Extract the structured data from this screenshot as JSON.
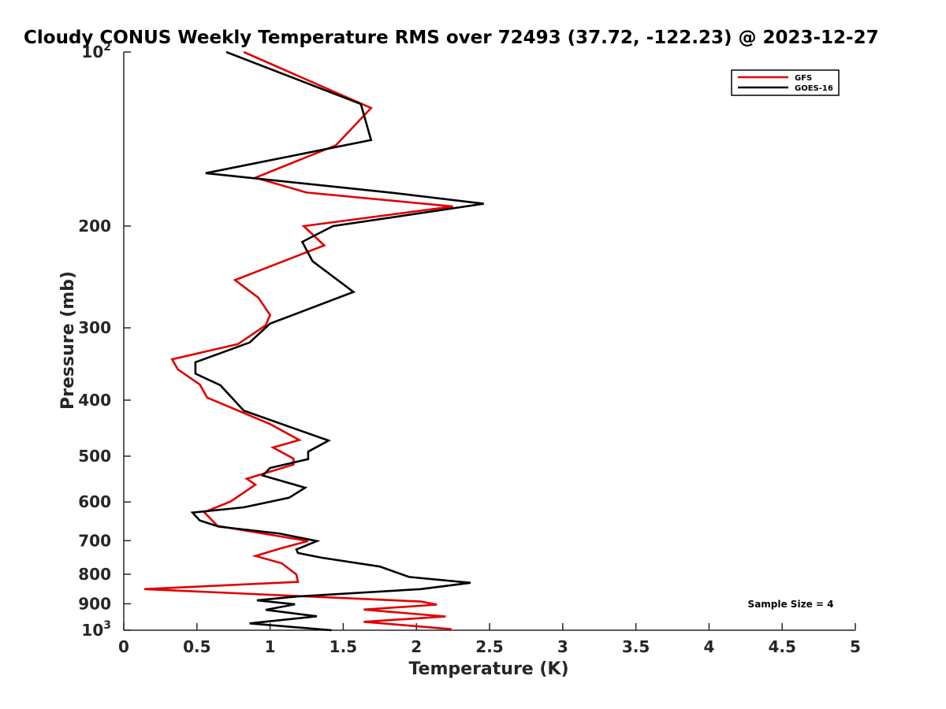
{
  "chart_data": {
    "type": "line",
    "title": "Cloudy CONUS Weekly Temperature RMS over 72493 (37.72, -122.23) @ 2023-12-27",
    "xlabel": "Temperature (K)",
    "ylabel": "Pressure (mb)",
    "xlim": [
      0,
      5
    ],
    "ylim": [
      100,
      1000
    ],
    "yscale": "log",
    "y_reversed": true,
    "x_ticks": [
      "0",
      "0.5",
      "1",
      "1.5",
      "2",
      "2.5",
      "3",
      "3.5",
      "4",
      "4.5",
      "5"
    ],
    "y_ticks": [
      {
        "value": 100,
        "base": "10",
        "exp": "2"
      },
      {
        "value": 200,
        "label": "200"
      },
      {
        "value": 300,
        "label": "300"
      },
      {
        "value": 400,
        "label": "400"
      },
      {
        "value": 500,
        "label": "500"
      },
      {
        "value": 600,
        "label": "600"
      },
      {
        "value": 700,
        "label": "700"
      },
      {
        "value": 800,
        "label": "800"
      },
      {
        "value": 900,
        "label": "900"
      },
      {
        "value": 1000,
        "base": "10",
        "exp": "3"
      }
    ],
    "grid": false,
    "legend_position": "top-right",
    "annotation": "Sample Size = 4",
    "series": [
      {
        "name": "GFS",
        "color": "#e00000",
        "points": [
          [
            0.82,
            100
          ],
          [
            1.69,
            125
          ],
          [
            1.45,
            145
          ],
          [
            0.9,
            165
          ],
          [
            1.25,
            175
          ],
          [
            2.25,
            185
          ],
          [
            1.23,
            200
          ],
          [
            1.37,
            216
          ],
          [
            0.76,
            248
          ],
          [
            0.92,
            266
          ],
          [
            1.0,
            285
          ],
          [
            0.97,
            297
          ],
          [
            0.78,
            320
          ],
          [
            0.33,
            340
          ],
          [
            0.37,
            354
          ],
          [
            0.52,
            376
          ],
          [
            0.57,
            396
          ],
          [
            1.0,
            440
          ],
          [
            1.2,
            469
          ],
          [
            1.02,
            483
          ],
          [
            1.16,
            505
          ],
          [
            1.16,
            517
          ],
          [
            0.84,
            547
          ],
          [
            0.9,
            560
          ],
          [
            0.73,
            599
          ],
          [
            0.55,
            625
          ],
          [
            0.64,
            660
          ],
          [
            1.26,
            701
          ],
          [
            1.07,
            722
          ],
          [
            0.9,
            744
          ],
          [
            1.08,
            766
          ],
          [
            1.18,
            801
          ],
          [
            1.19,
            825
          ],
          [
            0.14,
            849
          ],
          [
            2.03,
            892
          ],
          [
            2.14,
            903
          ],
          [
            1.64,
            921
          ],
          [
            2.2,
            947
          ],
          [
            1.64,
            967
          ],
          [
            2.24,
            996
          ]
        ]
      },
      {
        "name": "GOES-16",
        "color": "#000000",
        "points": [
          [
            0.7,
            100
          ],
          [
            1.62,
            123
          ],
          [
            1.69,
            142
          ],
          [
            0.56,
            162
          ],
          [
            1.82,
            175
          ],
          [
            2.46,
            183
          ],
          [
            1.43,
            200
          ],
          [
            1.22,
            213
          ],
          [
            1.29,
            230
          ],
          [
            1.57,
            260
          ],
          [
            1.0,
            295
          ],
          [
            0.86,
            318
          ],
          [
            0.49,
            344
          ],
          [
            0.49,
            360
          ],
          [
            0.66,
            377
          ],
          [
            0.82,
            417
          ],
          [
            1.4,
            470
          ],
          [
            1.26,
            491
          ],
          [
            1.26,
            506
          ],
          [
            1.0,
            524
          ],
          [
            0.95,
            540
          ],
          [
            1.24,
            567
          ],
          [
            1.13,
            590
          ],
          [
            0.82,
            613
          ],
          [
            0.47,
            626
          ],
          [
            0.52,
            646
          ],
          [
            0.65,
            662
          ],
          [
            1.06,
            680
          ],
          [
            1.32,
            701
          ],
          [
            1.18,
            725
          ],
          [
            1.19,
            735
          ],
          [
            1.35,
            749
          ],
          [
            1.75,
            776
          ],
          [
            1.95,
            809
          ],
          [
            2.37,
            828
          ],
          [
            2.03,
            849
          ],
          [
            1.19,
            874
          ],
          [
            0.91,
            888
          ],
          [
            1.17,
            902
          ],
          [
            0.97,
            922
          ],
          [
            1.32,
            946
          ],
          [
            0.86,
            973
          ],
          [
            1.42,
            1000
          ]
        ]
      }
    ]
  }
}
